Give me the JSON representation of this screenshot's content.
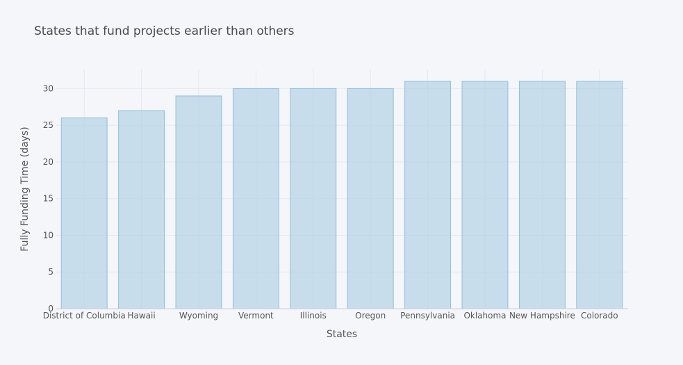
{
  "chart_data": {
    "type": "bar",
    "title": "States that fund projects earlier than others",
    "xlabel": "States",
    "ylabel": "Fully Funding Time (days)",
    "categories": [
      "District of Columbia",
      "Hawaii",
      "Wyoming",
      "Vermont",
      "Illinois",
      "Oregon",
      "Pennsylvania",
      "Oklahoma",
      "New Hampshire",
      "Colorado"
    ],
    "values": [
      26,
      27,
      29,
      30,
      30,
      30,
      31,
      31,
      31,
      31
    ],
    "ylim": [
      0,
      32.6
    ],
    "yticks": [
      0,
      5,
      10,
      15,
      20,
      25,
      30
    ],
    "grid": true,
    "colors": {
      "bar_fill": "#a8cde3",
      "bar_stroke": "#8fbfdc",
      "background": "#f5f6fa"
    }
  }
}
